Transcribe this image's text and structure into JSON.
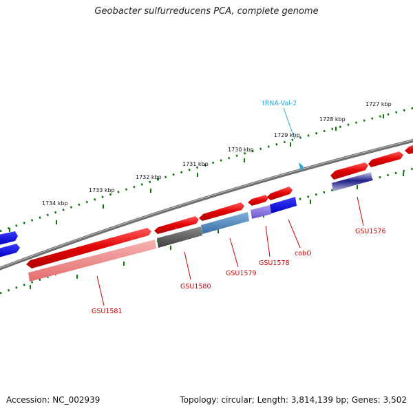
{
  "title": "Geobacter sulfurreducens PCA, complete genome",
  "footer": {
    "accession": "Accession: NC_002939",
    "summary": "Topology: circular; Length: 3,814,139 bp; Genes: 3,502"
  },
  "ruler": [
    "1727 kbp",
    "1728 kbp",
    "1729 kbp",
    "1730 kbp",
    "1731 kbp",
    "1732 kbp",
    "1733 kbp",
    "1734 kbp"
  ],
  "features": {
    "trna": "tRNA-Val-2",
    "genes": [
      "GSU1576",
      "cobO",
      "GSU1578",
      "GSU1579",
      "GSU1580",
      "GSU1581"
    ]
  },
  "colors": {
    "backbone": "#7a7a7a",
    "gene_forward": "#e00000",
    "gene_blue": "#0000e0",
    "ticks": "#0a7a0a",
    "trna": "#22a9e0",
    "label": "#cc0000"
  }
}
